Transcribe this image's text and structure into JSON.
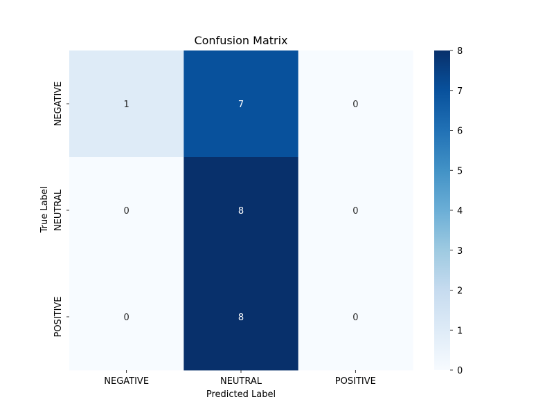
{
  "chart_data": {
    "type": "heatmap",
    "title": "Confusion Matrix",
    "xlabel": "Predicted Label",
    "ylabel": "True Label",
    "x_categories": [
      "NEGATIVE",
      "NEUTRAL",
      "POSITIVE"
    ],
    "y_categories": [
      "NEGATIVE",
      "NEUTRAL",
      "POSITIVE"
    ],
    "values": [
      [
        1,
        7,
        0
      ],
      [
        0,
        8,
        0
      ],
      [
        0,
        8,
        0
      ]
    ],
    "annotations": true,
    "colormap": "Blues",
    "color_range": [
      0,
      8
    ],
    "colorbar_ticks": [
      "0",
      "1",
      "2",
      "3",
      "4",
      "5",
      "6",
      "7",
      "8"
    ]
  }
}
